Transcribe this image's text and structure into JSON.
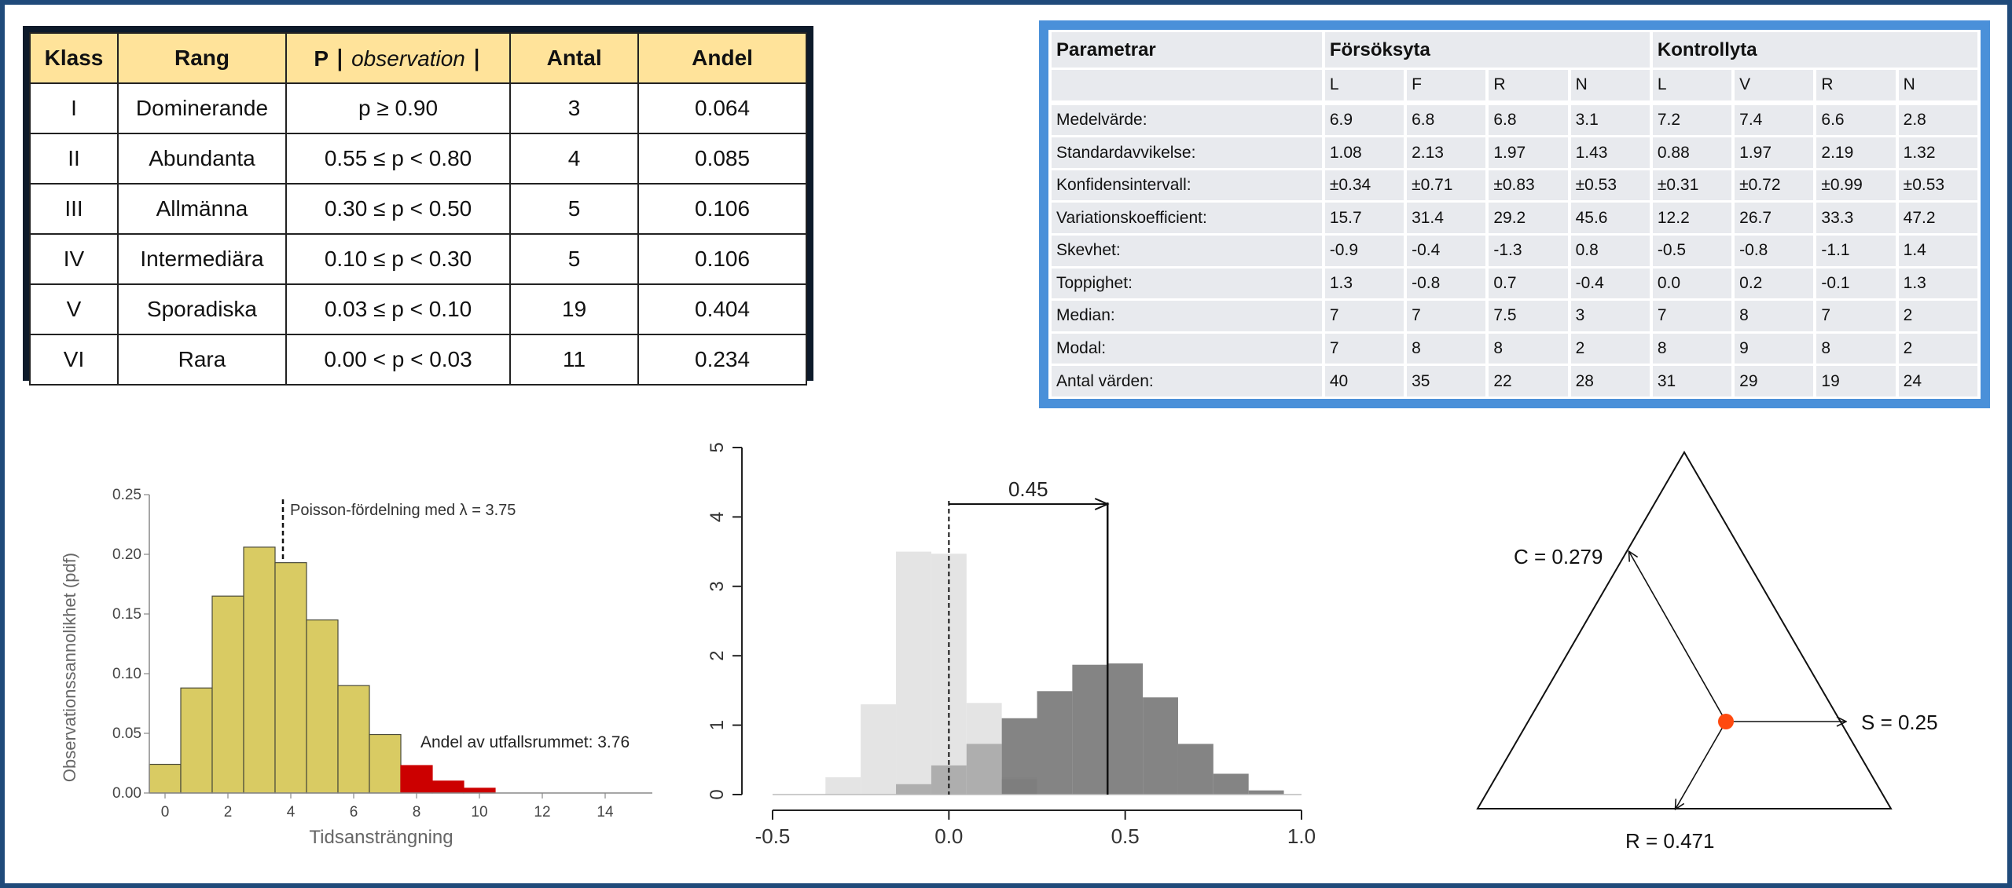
{
  "table_klass": {
    "headers": [
      "Klass",
      "Rang",
      "P",
      "observation",
      "Antal",
      "Andel"
    ],
    "rows": [
      [
        "I",
        "Dominerande",
        "p ≥ 0.90",
        "3",
        "0.064"
      ],
      [
        "II",
        "Abundanta",
        "0.55 ≤ p < 0.80",
        "4",
        "0.085"
      ],
      [
        "III",
        "Allmänna",
        "0.30 ≤ p < 0.50",
        "5",
        "0.106"
      ],
      [
        "IV",
        "Intermediära",
        "0.10 ≤ p < 0.30",
        "5",
        "0.106"
      ],
      [
        "V",
        "Sporadiska",
        "0.03 ≤ p < 0.10",
        "19",
        "0.404"
      ],
      [
        "VI",
        "Rara",
        "0.00 < p < 0.03",
        "11",
        "0.234"
      ]
    ]
  },
  "table_param": {
    "col_header": "Parametrar",
    "group1": "Försöksyta",
    "group2": "Kontrollyta",
    "sub1": [
      "L",
      "F",
      "R",
      "N"
    ],
    "sub2": [
      "L",
      "V",
      "R",
      "N"
    ],
    "rows": [
      [
        "Medelvärde:",
        "6.9",
        "6.8",
        "6.8",
        "3.1",
        "7.2",
        "7.4",
        "6.6",
        "2.8"
      ],
      [
        "Standardavvikelse:",
        "1.08",
        "2.13",
        "1.97",
        "1.43",
        "0.88",
        "1.97",
        "2.19",
        "1.32"
      ],
      [
        "Konfidensintervall:",
        "±0.34",
        "±0.71",
        "±0.83",
        "±0.53",
        "±0.31",
        "±0.72",
        "±0.99",
        "±0.53"
      ],
      [
        "Variationskoefficient:",
        "15.7",
        "31.4",
        "29.2",
        "45.6",
        "12.2",
        "26.7",
        "33.3",
        "47.2"
      ],
      [
        "Skevhet:",
        "-0.9",
        "-0.4",
        "-1.3",
        "0.8",
        "-0.5",
        "-0.8",
        "-1.1",
        "1.4"
      ],
      [
        "Toppighet:",
        "1.3",
        "-0.8",
        "0.7",
        "-0.4",
        "0.0",
        "0.2",
        "-0.1",
        "1.3"
      ],
      [
        "Median:",
        "7",
        "7",
        "7.5",
        "3",
        "7",
        "8",
        "7",
        "2"
      ],
      [
        "Modal:",
        "7",
        "8",
        "8",
        "2",
        "8",
        "9",
        "8",
        "2"
      ],
      [
        "Antal värden:",
        "40",
        "35",
        "22",
        "28",
        "31",
        "29",
        "19",
        "24"
      ]
    ]
  },
  "chart_data": [
    {
      "type": "bar",
      "ylabel": "Observationssannolikhet (pdf)",
      "xlabel": "Tidsansträngning",
      "annotation_top": "Poisson-fördelning med λ =  3.75",
      "annotation_tail": "Andel av utfallsrummet: 3.76",
      "x": [
        0,
        1,
        2,
        3,
        4,
        5,
        6,
        7,
        8,
        9,
        10
      ],
      "values": [
        0.024,
        0.088,
        0.165,
        0.206,
        0.193,
        0.145,
        0.09,
        0.049,
        0.023,
        0.01,
        0.004
      ],
      "tail_from": 8,
      "xticks": [
        "0",
        "2",
        "4",
        "6",
        "8",
        "10",
        "12",
        "14"
      ],
      "yticks": [
        "0.00",
        "0.05",
        "0.10",
        "0.15",
        "0.20",
        "0.25"
      ],
      "ylim": [
        0,
        0.25
      ],
      "xlim": [
        -0.5,
        15.5
      ],
      "lambda": 3.75,
      "colors": {
        "bar": "#d9cb63",
        "tail": "#cc0000",
        "stroke": "#4a4a3a"
      }
    },
    {
      "type": "bar",
      "annotation": "0.45",
      "marker": 0.45,
      "xticks": [
        "-0.5",
        "0.0",
        "0.5",
        "1.0"
      ],
      "yticks": [
        "0",
        "1",
        "2",
        "3",
        "4",
        "5"
      ],
      "xlim": [
        -0.5,
        1.0
      ],
      "ylim": [
        0,
        5
      ],
      "bin_width": 0.1,
      "series": [
        {
          "values": [
            {
              "x": -0.3,
              "y": 0.25
            },
            {
              "x": -0.2,
              "y": 1.3
            },
            {
              "x": -0.1,
              "y": 3.5
            },
            {
              "x": 0.0,
              "y": 3.47
            },
            {
              "x": 0.1,
              "y": 1.32
            },
            {
              "x": 0.2,
              "y": 0.25
            }
          ],
          "color": "#e2e2e2"
        },
        {
          "values": [
            {
              "x": -0.1,
              "y": 0.15
            },
            {
              "x": 0.0,
              "y": 0.42
            },
            {
              "x": 0.1,
              "y": 0.73
            },
            {
              "x": 0.2,
              "y": 0.22
            }
          ],
          "color": "#a9a9a9"
        },
        {
          "values": [
            {
              "x": 0.2,
              "y": 1.1
            },
            {
              "x": 0.3,
              "y": 1.49
            },
            {
              "x": 0.4,
              "y": 1.87
            },
            {
              "x": 0.5,
              "y": 1.89
            },
            {
              "x": 0.6,
              "y": 1.4
            },
            {
              "x": 0.7,
              "y": 0.73
            },
            {
              "x": 0.8,
              "y": 0.3
            },
            {
              "x": 0.9,
              "y": 0.06
            }
          ],
          "color": "#7a7a7a"
        }
      ]
    },
    {
      "type": "ternary",
      "labels": [
        "C = 0.279",
        "S = 0.25",
        "R = 0.471"
      ],
      "values": {
        "C": 0.279,
        "S": 0.25,
        "R": 0.471
      },
      "colors": {
        "point": "#ff4a10"
      }
    }
  ]
}
